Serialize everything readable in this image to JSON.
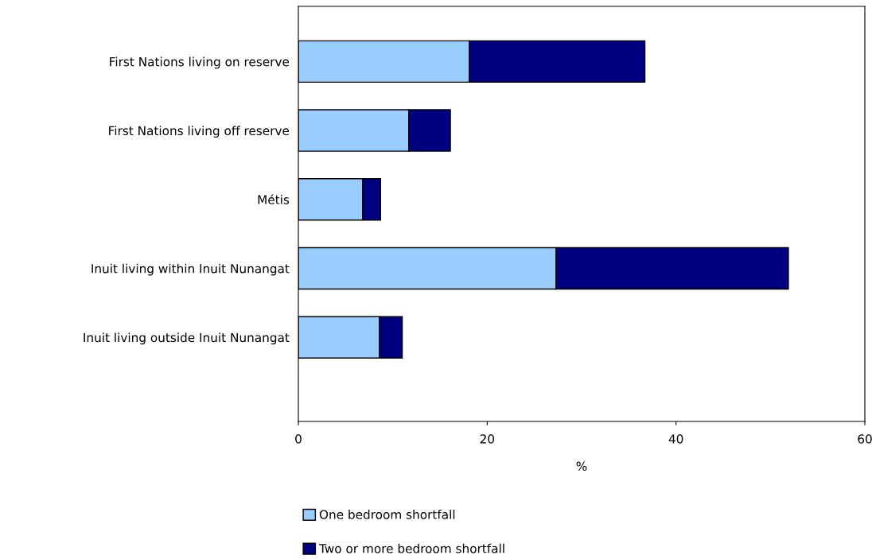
{
  "chart_data": {
    "type": "bar",
    "orientation": "horizontal",
    "stacked": true,
    "categories": [
      "First Nations living on reserve",
      "First Nations living off reserve",
      "Métis",
      "Inuit living within Inuit Nunangat",
      "Inuit living outside Inuit Nunangat"
    ],
    "series": [
      {
        "name": "One bedroom shortfall",
        "color": "#99ccff",
        "values": [
          18.1,
          11.7,
          6.8,
          27.3,
          8.6
        ]
      },
      {
        "name": "Two or more bedroom shortfall",
        "color": "#000080",
        "values": [
          18.6,
          4.4,
          1.9,
          24.6,
          2.4
        ]
      }
    ],
    "xlabel": "%",
    "xlim": [
      0,
      60
    ],
    "xticks": [
      0,
      20,
      40,
      60
    ],
    "grid": false,
    "legend": "bottom"
  }
}
